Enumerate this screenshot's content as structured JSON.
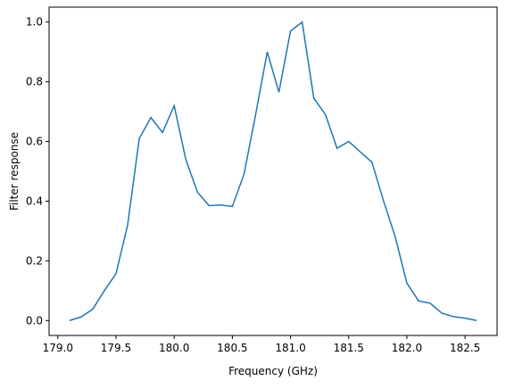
{
  "chart_data": {
    "type": "line",
    "xlabel": "Frequency (GHz)",
    "ylabel": "Filter response",
    "x": [
      179.1,
      179.2,
      179.3,
      179.4,
      179.5,
      179.6,
      179.7,
      179.8,
      179.9,
      180.0,
      180.1,
      180.2,
      180.3,
      180.4,
      180.5,
      180.6,
      180.7,
      180.8,
      180.9,
      181.0,
      181.1,
      181.2,
      181.3,
      181.4,
      181.5,
      181.6,
      181.7,
      181.8,
      181.9,
      182.0,
      182.1,
      182.2,
      182.3,
      182.4,
      182.5,
      182.6
    ],
    "series": [
      {
        "color": "#1f77b4",
        "values": [
          0.0,
          0.012,
          0.038,
          0.1,
          0.157,
          0.32,
          0.61,
          0.68,
          0.63,
          0.72,
          0.54,
          0.43,
          0.385,
          0.387,
          0.382,
          0.49,
          0.69,
          0.9,
          0.765,
          0.97,
          1.0,
          0.745,
          0.69,
          0.577,
          0.6,
          0.565,
          0.53,
          0.4,
          0.28,
          0.125,
          0.066,
          0.058,
          0.025,
          0.013,
          0.008,
          0.0
        ]
      }
    ],
    "xlim": [
      178.925,
      182.775
    ],
    "ylim": [
      -0.05,
      1.05
    ],
    "xticks": [
      {
        "value": 179.0,
        "label": "179.0"
      },
      179.5,
      {
        "value": 180.0,
        "label": "180.0"
      },
      180.5,
      {
        "value": 181.0,
        "label": "181.0"
      },
      181.5,
      {
        "value": 182.0,
        "label": "182.0"
      },
      182.5
    ],
    "yticks": [
      {
        "value": 0,
        "label": "0.0"
      },
      0.2,
      0.4,
      0.6,
      0.8,
      {
        "value": 1,
        "label": "1.0"
      }
    ]
  }
}
